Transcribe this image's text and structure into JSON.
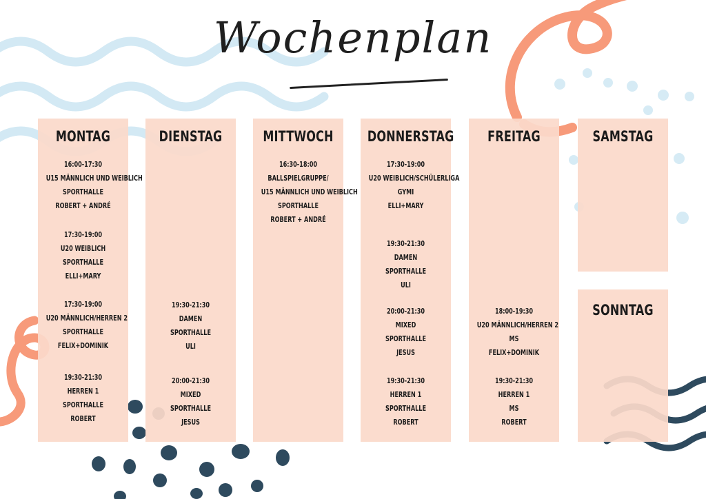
{
  "title": "Wochenplan",
  "colors": {
    "column_bg": "#fbd9ca",
    "wave_light_blue": "#cfe6f2",
    "salmon": "#f79a7a",
    "navy": "#2e4a5e",
    "text": "#1b1b1b"
  },
  "days": [
    {
      "name": "MONTAG",
      "entries": [
        [
          "16:00-17:30",
          "U15  MÄNNLICH UND WEIBLICH",
          "SPORTHALLE",
          "ROBERT + ANDRÉ"
        ],
        [
          "17:30-19:00",
          "U20 WEIBLICH",
          "SPORTHALLE",
          "ELLI+MARY"
        ],
        [
          "17:30-19:00",
          "U20 MÄNNLICH/HERREN 2",
          "SPORTHALLE",
          "FELIX+DOMINIK"
        ],
        [
          "19:30-21:30",
          "HERREN 1",
          "SPORTHALLE",
          "ROBERT"
        ]
      ]
    },
    {
      "name": "DIENSTAG",
      "entries": [
        [
          "19:30-21:30",
          "DAMEN",
          "SPORTHALLE",
          "ULI"
        ],
        [
          "20:00-21:30",
          "MIXED",
          "SPORTHALLE",
          "JESUS"
        ]
      ]
    },
    {
      "name": "MITTWOCH",
      "entries": [
        [
          "16:30-18:00",
          "BALLSPIELGRUPPE/",
          "U15  MÄNNLICH UND WEIBLICH",
          "SPORTHALLE",
          "ROBERT + ANDRÉ"
        ]
      ]
    },
    {
      "name": "DONNERSTAG",
      "entries": [
        [
          "17:30-19:00",
          "U20 WEIBLICH/SCHÜLERLIGA",
          "GYMI",
          "ELLI+MARY"
        ],
        [
          "19:30-21:30",
          "DAMEN",
          "SPORTHALLE",
          "ULI"
        ],
        [
          "20:00-21:30",
          "MIXED",
          "SPORTHALLE",
          "JESUS"
        ],
        [
          "19:30-21:30",
          "HERREN 1",
          "SPORTHALLE",
          "ROBERT"
        ]
      ]
    },
    {
      "name": "FREITAG",
      "entries": [
        [
          "18:00-19:30",
          "U20 MÄNNLICH/HERREN 2",
          "MS",
          "FELIX+DOMINIK"
        ],
        [
          "19:30-21:30",
          "HERREN 1",
          "MS",
          "ROBERT"
        ]
      ]
    },
    {
      "name": "SAMSTAG",
      "entries": []
    },
    {
      "name": "SONNTAG",
      "entries": []
    }
  ]
}
